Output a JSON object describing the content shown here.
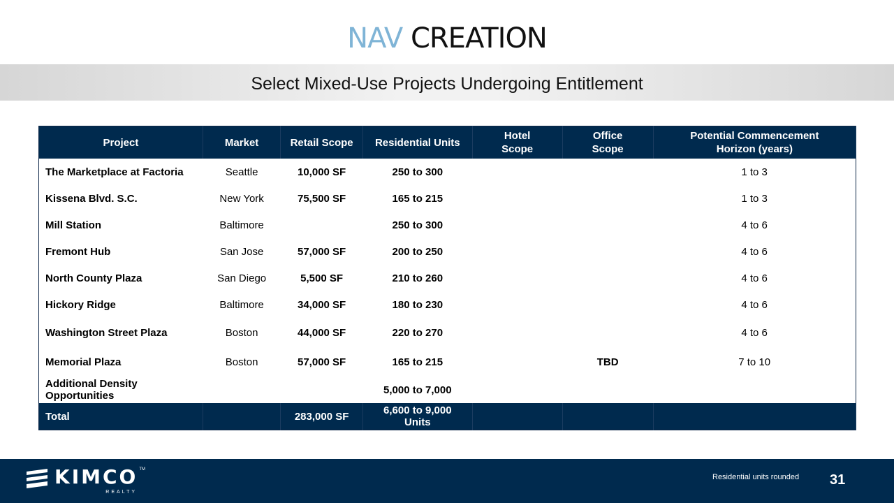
{
  "header": {
    "title_accent": "NAV",
    "title_rest": "CREATION",
    "subtitle": "Select Mixed-Use Projects Undergoing Entitlement"
  },
  "table": {
    "columns": [
      "Project",
      "Market",
      "Retail Scope",
      "Residential Units",
      "Hotel Scope",
      "Office Scope",
      "Potential Commencement Horizon (years)"
    ],
    "rows": [
      [
        "The Marketplace at Factoria",
        "Seattle",
        "10,000 SF",
        "250 to 300",
        "",
        "",
        "1 to 3"
      ],
      [
        "Kissena Blvd. S.C.",
        "New York",
        "75,500 SF",
        "165 to 215",
        "",
        "",
        "1 to 3"
      ],
      [
        "Mill Station",
        "Baltimore",
        "",
        "250 to 300",
        "",
        "",
        "4 to 6"
      ],
      [
        "Fremont Hub",
        "San Jose",
        "57,000 SF",
        "200 to 250",
        "",
        "",
        "4 to 6"
      ],
      [
        "North County Plaza",
        "San Diego",
        "5,500 SF",
        "210 to 260",
        "",
        "",
        "4 to 6"
      ],
      [
        "Hickory Ridge",
        "Baltimore",
        "34,000 SF",
        "180 to 230",
        "",
        "",
        "4 to 6"
      ],
      [
        "Washington Street Plaza",
        "Boston",
        "44,000 SF",
        "220 to 270",
        "",
        "",
        "4 to 6"
      ],
      [
        "Memorial Plaza",
        "Boston",
        "57,000 SF",
        "165 to 215",
        "",
        "TBD",
        "7 to 10"
      ],
      [
        "Additional Density Opportunities",
        "",
        "",
        "5,000 to 7,000",
        "",
        "",
        ""
      ]
    ],
    "total": [
      "Total",
      "",
      "283,000 SF",
      "6,600 to 9,000 Units",
      "",
      "",
      ""
    ]
  },
  "footer": {
    "logo_text": "KIMCO",
    "logo_sub": "REALTY",
    "logo_tm": "TM",
    "note": "Residential units rounded",
    "page_number": "31"
  },
  "colors": {
    "navy": "#002a4e",
    "accent": "#7fb4d6"
  }
}
